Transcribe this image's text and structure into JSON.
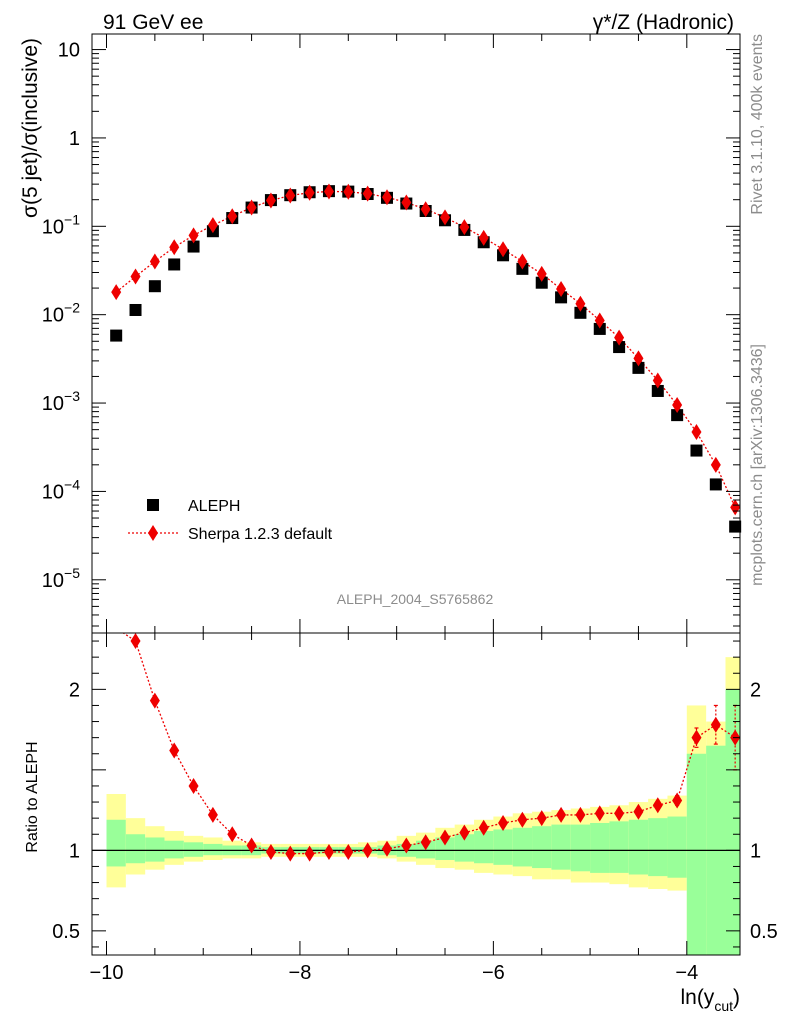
{
  "header": {
    "left": "91 GeV ee",
    "right": "γ*/Z (Hadronic)"
  },
  "side_labels": {
    "version": "Rivet 3.1.10,  400k events",
    "source": "mcplots.cern.ch [arXiv:1306.3436]"
  },
  "watermark": "ALEPH_2004_S5765862",
  "colors": {
    "data": "#000000",
    "mc": "#ee0000",
    "band_inner": "#99ff99",
    "band_outer": "#ffff99"
  },
  "chart_data": [
    {
      "type": "scatter",
      "panel": "main",
      "ylabel": "σ(5 jet)/σ(inclusive)",
      "yscale": "log",
      "ylim": [
        2.5e-06,
        15
      ],
      "xlim": [
        -10.15,
        -3.45
      ],
      "yticks": [
        {
          "value": 10,
          "label": "10"
        },
        {
          "value": 1,
          "label": "1"
        },
        {
          "value": 0.1,
          "label": "10",
          "exp": "−1"
        },
        {
          "value": 0.01,
          "label": "10",
          "exp": "−2"
        },
        {
          "value": 0.001,
          "label": "10",
          "exp": "−3"
        },
        {
          "value": 0.0001,
          "label": "10",
          "exp": "−4"
        },
        {
          "value": 1e-05,
          "label": "10",
          "exp": "−5"
        }
      ],
      "legend": {
        "position": "lower-left",
        "entries": [
          "ALEPH",
          "Sherpa 1.2.3 default"
        ]
      },
      "x": [
        -9.9,
        -9.7,
        -9.5,
        -9.3,
        -9.1,
        -8.9,
        -8.7,
        -8.5,
        -8.3,
        -8.1,
        -7.9,
        -7.7,
        -7.5,
        -7.3,
        -7.1,
        -6.9,
        -6.7,
        -6.5,
        -6.3,
        -6.1,
        -5.9,
        -5.7,
        -5.5,
        -5.3,
        -5.1,
        -4.9,
        -4.7,
        -4.5,
        -4.3,
        -4.1,
        -3.9,
        -3.7,
        -3.5
      ],
      "series": [
        {
          "name": "ALEPH",
          "marker": "square",
          "values": [
            0.0058,
            0.0113,
            0.021,
            0.037,
            0.059,
            0.088,
            0.124,
            0.163,
            0.198,
            0.225,
            0.243,
            0.25,
            0.247,
            0.232,
            0.21,
            0.181,
            0.149,
            0.117,
            0.091,
            0.066,
            0.047,
            0.033,
            0.023,
            0.0157,
            0.0105,
            0.0069,
            0.0043,
            0.0025,
            0.00137,
            0.00073,
            0.00029,
            0.00012,
            4e-05
          ]
        },
        {
          "name": "Sherpa 1.2.3 default",
          "marker": "diamond",
          "line": "dotted",
          "values": [
            0.018,
            0.027,
            0.04,
            0.058,
            0.079,
            0.103,
            0.13,
            0.163,
            0.196,
            0.223,
            0.24,
            0.248,
            0.246,
            0.234,
            0.213,
            0.186,
            0.156,
            0.126,
            0.098,
            0.074,
            0.055,
            0.04,
            0.029,
            0.0195,
            0.0133,
            0.0086,
            0.0055,
            0.0032,
            0.0018,
            0.00095,
            0.00047,
            0.0002,
            6.6e-05
          ]
        }
      ]
    },
    {
      "type": "scatter",
      "panel": "ratio",
      "ylabel": "Ratio to ALEPH",
      "xlabel": "ln(y",
      "xlabel_sub": "cut",
      "xlabel_end": ")",
      "ylim": [
        0.35,
        2.35
      ],
      "xlim": [
        -10.15,
        -3.45
      ],
      "yticks": [
        {
          "value": 0.5,
          "label": "0.5"
        },
        {
          "value": 1,
          "label": "1"
        },
        {
          "value": 2,
          "label": "2"
        }
      ],
      "xticks": [
        {
          "value": -10,
          "label": "−10"
        },
        {
          "value": -8,
          "label": "−8"
        },
        {
          "value": -6,
          "label": "−6"
        },
        {
          "value": -4,
          "label": "−4"
        }
      ],
      "bins": [
        -10,
        -9.8,
        -9.6,
        -9.4,
        -9.2,
        -9.0,
        -8.8,
        -8.6,
        -8.4,
        -8.2,
        -8.0,
        -7.8,
        -7.6,
        -7.4,
        -7.2,
        -7.0,
        -6.8,
        -6.6,
        -6.4,
        -6.2,
        -6.0,
        -5.8,
        -5.6,
        -5.4,
        -5.2,
        -5.0,
        -4.8,
        -4.6,
        -4.4,
        -4.2,
        -4.0,
        -3.8,
        -3.6,
        -3.4
      ],
      "band_inner": {
        "upper": [
          1.19,
          1.1,
          1.08,
          1.06,
          1.05,
          1.04,
          1.03,
          1.03,
          1.02,
          1.02,
          1.02,
          1.02,
          1.02,
          1.02,
          1.03,
          1.04,
          1.06,
          1.08,
          1.1,
          1.12,
          1.13,
          1.14,
          1.15,
          1.16,
          1.16,
          1.17,
          1.18,
          1.19,
          1.2,
          1.21,
          1.6,
          1.65,
          2.0
        ],
        "lower": [
          0.9,
          0.92,
          0.93,
          0.95,
          0.96,
          0.97,
          0.97,
          0.97,
          0.98,
          0.98,
          0.98,
          0.98,
          0.98,
          0.98,
          0.97,
          0.96,
          0.95,
          0.94,
          0.93,
          0.92,
          0.91,
          0.9,
          0.89,
          0.88,
          0.87,
          0.86,
          0.86,
          0.85,
          0.84,
          0.83,
          0.35,
          0.35,
          0.35
        ]
      },
      "band_outer": {
        "upper": [
          1.35,
          1.2,
          1.15,
          1.12,
          1.09,
          1.08,
          1.06,
          1.05,
          1.04,
          1.04,
          1.04,
          1.04,
          1.04,
          1.05,
          1.06,
          1.09,
          1.11,
          1.14,
          1.16,
          1.19,
          1.21,
          1.23,
          1.24,
          1.25,
          1.26,
          1.27,
          1.28,
          1.3,
          1.32,
          1.34,
          1.9,
          1.8,
          2.2
        ],
        "lower": [
          0.77,
          0.85,
          0.88,
          0.91,
          0.93,
          0.94,
          0.95,
          0.95,
          0.96,
          0.96,
          0.96,
          0.96,
          0.96,
          0.96,
          0.95,
          0.93,
          0.91,
          0.89,
          0.88,
          0.86,
          0.85,
          0.84,
          0.82,
          0.82,
          0.8,
          0.8,
          0.79,
          0.77,
          0.76,
          0.75,
          0.35,
          0.35,
          0.35
        ]
      },
      "x": [
        -9.9,
        -9.7,
        -9.5,
        -9.3,
        -9.1,
        -8.9,
        -8.7,
        -8.5,
        -8.3,
        -8.1,
        -7.9,
        -7.7,
        -7.5,
        -7.3,
        -7.1,
        -6.9,
        -6.7,
        -6.5,
        -6.3,
        -6.1,
        -5.9,
        -5.7,
        -5.5,
        -5.3,
        -5.1,
        -4.9,
        -4.7,
        -4.5,
        -4.3,
        -4.1,
        -3.9,
        -3.7,
        -3.5
      ],
      "series": [
        {
          "name": "Sherpa 1.2.3 default",
          "values": [
            2.38,
            2.3,
            1.93,
            1.62,
            1.4,
            1.22,
            1.1,
            1.03,
            0.99,
            0.98,
            0.98,
            0.99,
            0.99,
            1.0,
            1.01,
            1.03,
            1.05,
            1.08,
            1.11,
            1.14,
            1.17,
            1.19,
            1.2,
            1.22,
            1.22,
            1.23,
            1.23,
            1.24,
            1.28,
            1.31,
            1.7,
            1.78,
            1.7
          ],
          "errors": [
            0,
            0,
            0,
            0,
            0,
            0,
            0,
            0,
            0,
            0,
            0,
            0,
            0,
            0,
            0,
            0,
            0,
            0,
            0,
            0,
            0,
            0,
            0,
            0,
            0,
            0,
            0,
            0,
            0.02,
            0.03,
            0.06,
            0.12,
            0.2
          ]
        }
      ]
    }
  ]
}
